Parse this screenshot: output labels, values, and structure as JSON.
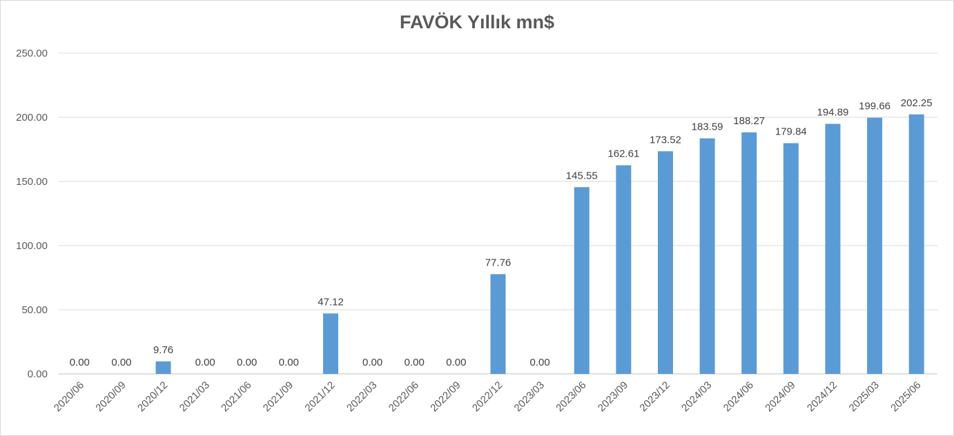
{
  "chart_data": {
    "type": "bar",
    "title": "FAVÖK Yıllık mn$",
    "categories": [
      "2020/06",
      "2020/09",
      "2020/12",
      "2021/03",
      "2021/06",
      "2021/09",
      "2021/12",
      "2022/03",
      "2022/06",
      "2022/09",
      "2022/12",
      "2023/03",
      "2023/06",
      "2023/09",
      "2023/12",
      "2024/03",
      "2024/06",
      "2024/09",
      "2024/12",
      "2025/03",
      "2025/06"
    ],
    "values": [
      0.0,
      0.0,
      9.76,
      0.0,
      0.0,
      0.0,
      47.12,
      0.0,
      0.0,
      0.0,
      77.76,
      0.0,
      145.55,
      162.61,
      173.52,
      183.59,
      188.27,
      179.84,
      194.89,
      199.66,
      202.25
    ],
    "value_labels": [
      "0.00",
      "0.00",
      "9.76",
      "0.00",
      "0.00",
      "0.00",
      "47.12",
      "0.00",
      "0.00",
      "0.00",
      "77.76",
      "0.00",
      "145.55",
      "162.61",
      "173.52",
      "183.59",
      "188.27",
      "179.84",
      "194.89",
      "199.66",
      "202.25"
    ],
    "y_ticks": [
      {
        "value": 0,
        "label": "0.00"
      },
      {
        "value": 50,
        "label": "50.00"
      },
      {
        "value": 100,
        "label": "100.00"
      },
      {
        "value": 150,
        "label": "150.00"
      },
      {
        "value": 200,
        "label": "200.00"
      },
      {
        "value": 250,
        "label": "250.00"
      }
    ],
    "ylim": [
      0,
      250
    ],
    "xlabel": "",
    "ylabel": "",
    "grid": true,
    "legend_position": "none",
    "colors": {
      "bar": "#5B9BD5",
      "gridline": "#D9D9D9",
      "axis_line": "#BFBFBF",
      "tick_label": "#595959",
      "data_label": "#404040",
      "title": "#595959",
      "border": "#D7D7D7",
      "background": "#FFFFFF"
    }
  }
}
